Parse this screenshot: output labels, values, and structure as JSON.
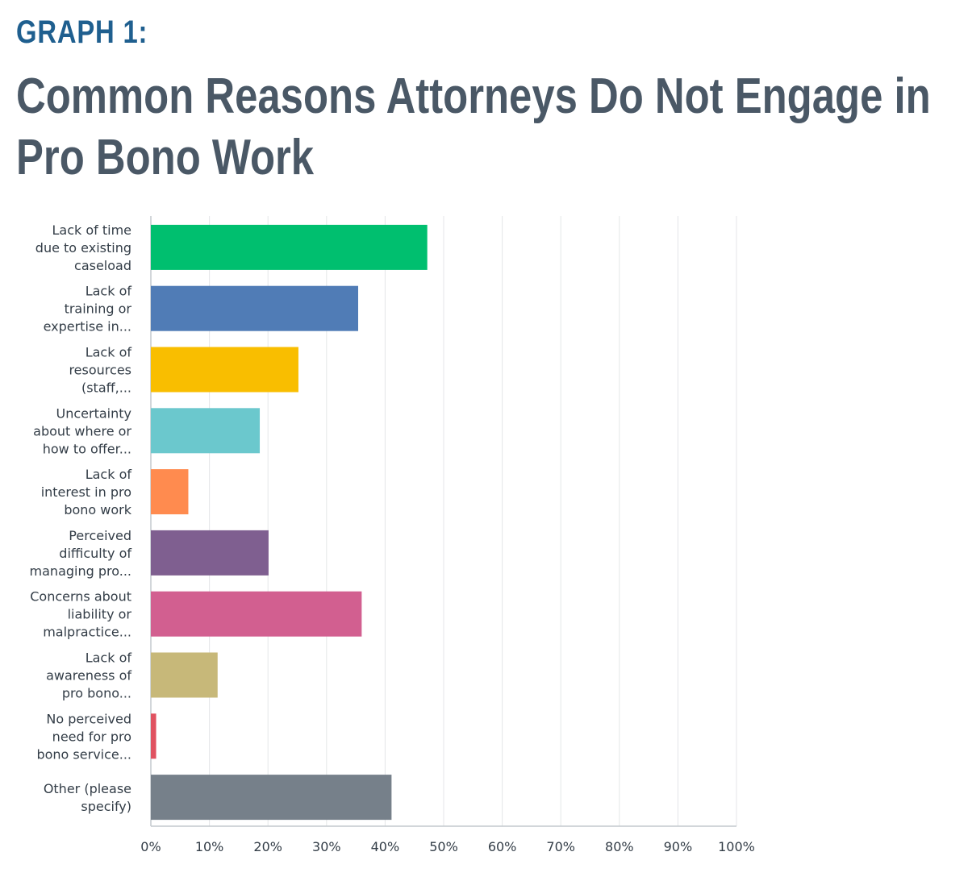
{
  "header": {
    "graph_label": "GRAPH 1:",
    "title": "Common Reasons Attorneys Do Not Engage in\nPro Bono Work"
  },
  "chart_data": {
    "type": "bar",
    "orientation": "horizontal",
    "title": "Common Reasons Attorneys Do Not Engage in Pro Bono Work",
    "xlabel": "",
    "ylabel": "",
    "xlim": [
      0,
      100
    ],
    "grid": true,
    "tick_labels": [
      "0%",
      "10%",
      "20%",
      "30%",
      "40%",
      "50%",
      "60%",
      "70%",
      "80%",
      "90%",
      "100%"
    ],
    "categories": [
      [
        "Lack of time",
        "due to existing",
        "caseload"
      ],
      [
        "Lack of",
        "training or",
        "expertise in..."
      ],
      [
        "Lack of",
        "resources",
        "(staff,..."
      ],
      [
        "Uncertainty",
        "about where or",
        "how to offer..."
      ],
      [
        "Lack of",
        "interest in pro",
        "bono work"
      ],
      [
        "Perceived",
        "difficulty of",
        "managing pro..."
      ],
      [
        "Concerns about",
        "liability or",
        "malpractice..."
      ],
      [
        "Lack of",
        "awareness of",
        "pro bono..."
      ],
      [
        "No perceived",
        "need for pro",
        "bono service..."
      ],
      [
        "Other (please",
        "specify)"
      ]
    ],
    "values": [
      47.2,
      35.4,
      25.2,
      18.6,
      6.4,
      20.1,
      36.0,
      11.4,
      0.9,
      41.1
    ],
    "colors": [
      "#00bf6f",
      "#507cb6",
      "#f9be00",
      "#6bc8cd",
      "#ff8b4f",
      "#7f5f90",
      "#d25f90",
      "#c7b879",
      "#e05260",
      "#76808a"
    ]
  }
}
